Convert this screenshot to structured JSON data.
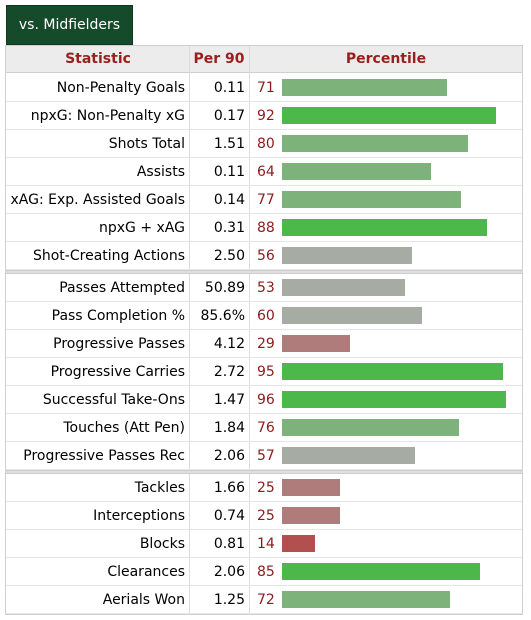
{
  "tab": {
    "label": "vs. Midfielders"
  },
  "headers": {
    "statistic": "Statistic",
    "per90": "Per 90",
    "percentile": "Percentile"
  },
  "colors": {
    "tab_bg": "#154a2a",
    "header_text": "#9a1e1e",
    "percentile_text": "#8a1c1c",
    "bar_high": "#4cb84a",
    "bar_mid_high": "#7db27a",
    "bar_mid": "#a6aca3",
    "bar_low": "#b07b7b",
    "bar_very_low": "#b24f4f"
  },
  "groups": [
    [
      {
        "stat": "Non-Penalty Goals",
        "per90": "0.11",
        "pct": 71
      },
      {
        "stat": "npxG: Non-Penalty xG",
        "per90": "0.17",
        "pct": 92
      },
      {
        "stat": "Shots Total",
        "per90": "1.51",
        "pct": 80
      },
      {
        "stat": "Assists",
        "per90": "0.11",
        "pct": 64
      },
      {
        "stat": "xAG: Exp. Assisted Goals",
        "per90": "0.14",
        "pct": 77
      },
      {
        "stat": "npxG + xAG",
        "per90": "0.31",
        "pct": 88
      },
      {
        "stat": "Shot-Creating Actions",
        "per90": "2.50",
        "pct": 56
      }
    ],
    [
      {
        "stat": "Passes Attempted",
        "per90": "50.89",
        "pct": 53
      },
      {
        "stat": "Pass Completion %",
        "per90": "85.6%",
        "pct": 60
      },
      {
        "stat": "Progressive Passes",
        "per90": "4.12",
        "pct": 29
      },
      {
        "stat": "Progressive Carries",
        "per90": "2.72",
        "pct": 95
      },
      {
        "stat": "Successful Take-Ons",
        "per90": "1.47",
        "pct": 96
      },
      {
        "stat": "Touches (Att Pen)",
        "per90": "1.84",
        "pct": 76
      },
      {
        "stat": "Progressive Passes Rec",
        "per90": "2.06",
        "pct": 57
      }
    ],
    [
      {
        "stat": "Tackles",
        "per90": "1.66",
        "pct": 25
      },
      {
        "stat": "Interceptions",
        "per90": "0.74",
        "pct": 25
      },
      {
        "stat": "Blocks",
        "per90": "0.81",
        "pct": 14
      },
      {
        "stat": "Clearances",
        "per90": "2.06",
        "pct": 85
      },
      {
        "stat": "Aerials Won",
        "per90": "1.25",
        "pct": 72
      }
    ]
  ]
}
